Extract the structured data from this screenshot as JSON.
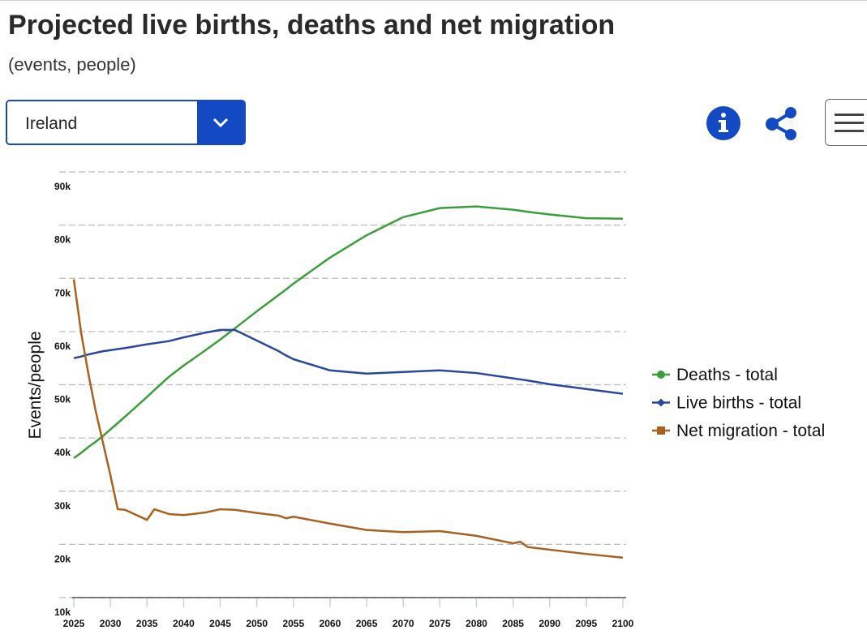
{
  "header": {
    "title": "Projected live births, deaths and net migration",
    "subtitle": "(events, people)"
  },
  "controls": {
    "country": "Ireland"
  },
  "chart_data": {
    "type": "line",
    "ylabel": "Events/people",
    "x": [
      2025,
      2026,
      2027,
      2028,
      2029,
      2030,
      2031,
      2032,
      2035,
      2036,
      2038,
      2040,
      2043,
      2045,
      2047,
      2050,
      2053,
      2054,
      2055,
      2060,
      2065,
      2070,
      2075,
      2080,
      2085,
      2086,
      2087,
      2090,
      2095,
      2100
    ],
    "series": [
      {
        "name": "Deaths - total",
        "color": "#3a9e3a",
        "marker": "circle",
        "values": [
          36200,
          37200,
          38300,
          39300,
          40400,
          41600,
          42800,
          44000,
          47700,
          49000,
          51500,
          53600,
          56500,
          58500,
          60600,
          63800,
          66900,
          67900,
          69000,
          73900,
          78100,
          81500,
          83200,
          83500,
          82900,
          82700,
          82500,
          82000,
          81300,
          81200
        ]
      },
      {
        "name": "Live births - total",
        "color": "#2a479c",
        "marker": "diamond",
        "values": [
          55000,
          55300,
          55700,
          56000,
          56300,
          56500,
          56700,
          56900,
          57600,
          57800,
          58200,
          58900,
          59800,
          60300,
          60300,
          58300,
          56300,
          55500,
          54800,
          52700,
          52100,
          52400,
          52700,
          52200,
          51200,
          51000,
          50800,
          50100,
          49200,
          48300
        ]
      },
      {
        "name": "Net migration - total",
        "color": "#a8611e",
        "marker": "square",
        "values": [
          69800,
          59800,
          52000,
          45000,
          39000,
          33000,
          26600,
          26500,
          24600,
          26600,
          25700,
          25500,
          26000,
          26600,
          26500,
          25900,
          25400,
          24900,
          25200,
          23900,
          22700,
          22300,
          22500,
          21600,
          20200,
          20500,
          19500,
          19000,
          18200,
          17500
        ]
      }
    ],
    "xlim": [
      2025,
      2100
    ],
    "xticks": [
      2025,
      2030,
      2035,
      2040,
      2045,
      2050,
      2055,
      2060,
      2065,
      2070,
      2075,
      2080,
      2085,
      2090,
      2095,
      2100
    ],
    "ylim": [
      10000,
      90000
    ],
    "yticks": [
      {
        "value": 10000,
        "label": "10k"
      },
      {
        "value": 20000,
        "label": "20k"
      },
      {
        "value": 30000,
        "label": "30k"
      },
      {
        "value": 40000,
        "label": "40k"
      },
      {
        "value": 50000,
        "label": "50k"
      },
      {
        "value": 60000,
        "label": "60k"
      },
      {
        "value": 70000,
        "label": "70k"
      },
      {
        "value": 80000,
        "label": "80k"
      },
      {
        "value": 90000,
        "label": "90k"
      }
    ],
    "grid": true,
    "legend": "right"
  }
}
